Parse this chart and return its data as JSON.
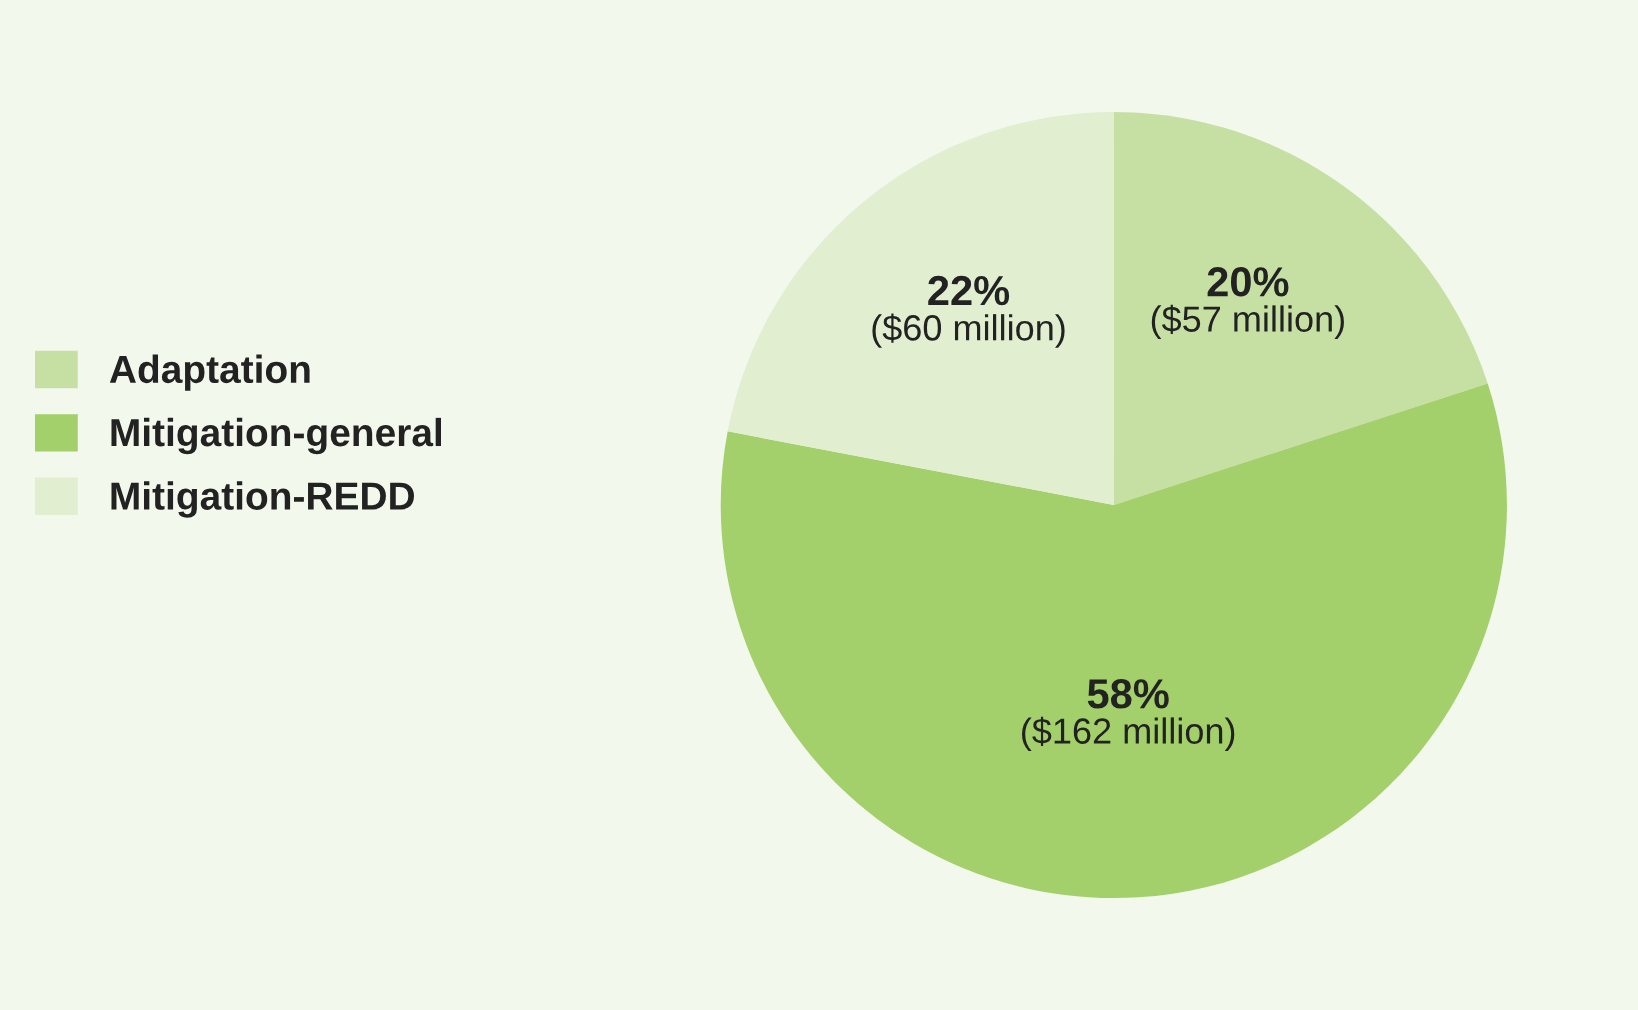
{
  "chart_data": {
    "type": "pie",
    "categories": [
      "Adaptation",
      "Mitigation-general",
      "Mitigation-REDD"
    ],
    "values": [
      20,
      58,
      22
    ],
    "colors": [
      "#c6e0a4",
      "#a3d06a",
      "#e1eed0"
    ],
    "value_labels": [
      "20%\n($57 million)",
      "58%\n($162 million)",
      "22%\n($60 million)"
    ],
    "legend": "left"
  }
}
